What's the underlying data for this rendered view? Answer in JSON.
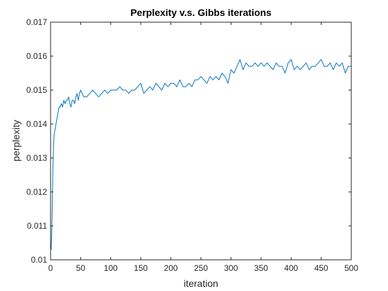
{
  "chart_data": {
    "type": "line",
    "title": "Perplexity v.s. Gibbs iterations",
    "xlabel": "iteration",
    "ylabel": "perplexity",
    "xlim": [
      0,
      500
    ],
    "ylim": [
      0.01,
      0.017
    ],
    "xticks": [
      0,
      50,
      100,
      150,
      200,
      250,
      300,
      350,
      400,
      450,
      500
    ],
    "yticks": [
      0.01,
      0.011,
      0.012,
      0.013,
      0.014,
      0.015,
      0.016,
      0.017
    ],
    "xtick_labels": [
      "0",
      "50",
      "100",
      "150",
      "200",
      "250",
      "300",
      "350",
      "400",
      "450",
      "500"
    ],
    "ytick_labels": [
      "0.01",
      "0.011",
      "0.012",
      "0.013",
      "0.014",
      "0.015",
      "0.016",
      "0.017"
    ],
    "grid": false,
    "line_color": "#0072BD",
    "series": [
      {
        "x": [
          1,
          2,
          3,
          4,
          5,
          6,
          8,
          10,
          12,
          14,
          16,
          18,
          20,
          22,
          24,
          26,
          28,
          30,
          32,
          34,
          36,
          38,
          40,
          42,
          44,
          46,
          48,
          50,
          55,
          60,
          65,
          70,
          75,
          80,
          85,
          90,
          95,
          100,
          105,
          110,
          115,
          120,
          125,
          130,
          135,
          140,
          145,
          150,
          155,
          160,
          165,
          170,
          175,
          180,
          185,
          190,
          195,
          200,
          205,
          210,
          215,
          220,
          225,
          230,
          235,
          240,
          245,
          250,
          255,
          260,
          265,
          270,
          275,
          280,
          285,
          290,
          295,
          300,
          305,
          310,
          315,
          320,
          325,
          330,
          335,
          340,
          345,
          350,
          355,
          360,
          365,
          370,
          375,
          380,
          385,
          390,
          395,
          400,
          405,
          410,
          415,
          420,
          425,
          430,
          435,
          440,
          445,
          450,
          455,
          460,
          465,
          470,
          475,
          480,
          485,
          490,
          495,
          500
        ],
        "y": [
          0.0103,
          0.0108,
          0.0118,
          0.0128,
          0.0134,
          0.0137,
          0.0139,
          0.0141,
          0.0143,
          0.0145,
          0.0145,
          0.0146,
          0.0145,
          0.0147,
          0.0146,
          0.0147,
          0.0147,
          0.0148,
          0.0146,
          0.0145,
          0.0147,
          0.0147,
          0.0146,
          0.0148,
          0.0149,
          0.0147,
          0.0149,
          0.015,
          0.0148,
          0.0148,
          0.0149,
          0.015,
          0.0149,
          0.0148,
          0.0149,
          0.015,
          0.0149,
          0.015,
          0.015,
          0.015,
          0.0151,
          0.015,
          0.015,
          0.0149,
          0.015,
          0.015,
          0.0151,
          0.0152,
          0.0149,
          0.015,
          0.0151,
          0.015,
          0.0152,
          0.0151,
          0.015,
          0.0152,
          0.0151,
          0.0152,
          0.0152,
          0.0151,
          0.0153,
          0.0151,
          0.0151,
          0.0152,
          0.0151,
          0.0153,
          0.0153,
          0.0154,
          0.0153,
          0.0152,
          0.0154,
          0.0153,
          0.0154,
          0.0153,
          0.0155,
          0.0154,
          0.0152,
          0.0156,
          0.0155,
          0.0157,
          0.0159,
          0.0156,
          0.0158,
          0.0157,
          0.0157,
          0.0158,
          0.0157,
          0.0158,
          0.0157,
          0.0158,
          0.0157,
          0.0156,
          0.0158,
          0.0157,
          0.0157,
          0.0155,
          0.0158,
          0.0159,
          0.0156,
          0.0157,
          0.0156,
          0.0157,
          0.0158,
          0.0156,
          0.0157,
          0.0157,
          0.0158,
          0.0159,
          0.0157,
          0.0157,
          0.0158,
          0.0156,
          0.0158,
          0.0157,
          0.0158,
          0.0155,
          0.0157,
          0.0157
        ]
      }
    ]
  }
}
